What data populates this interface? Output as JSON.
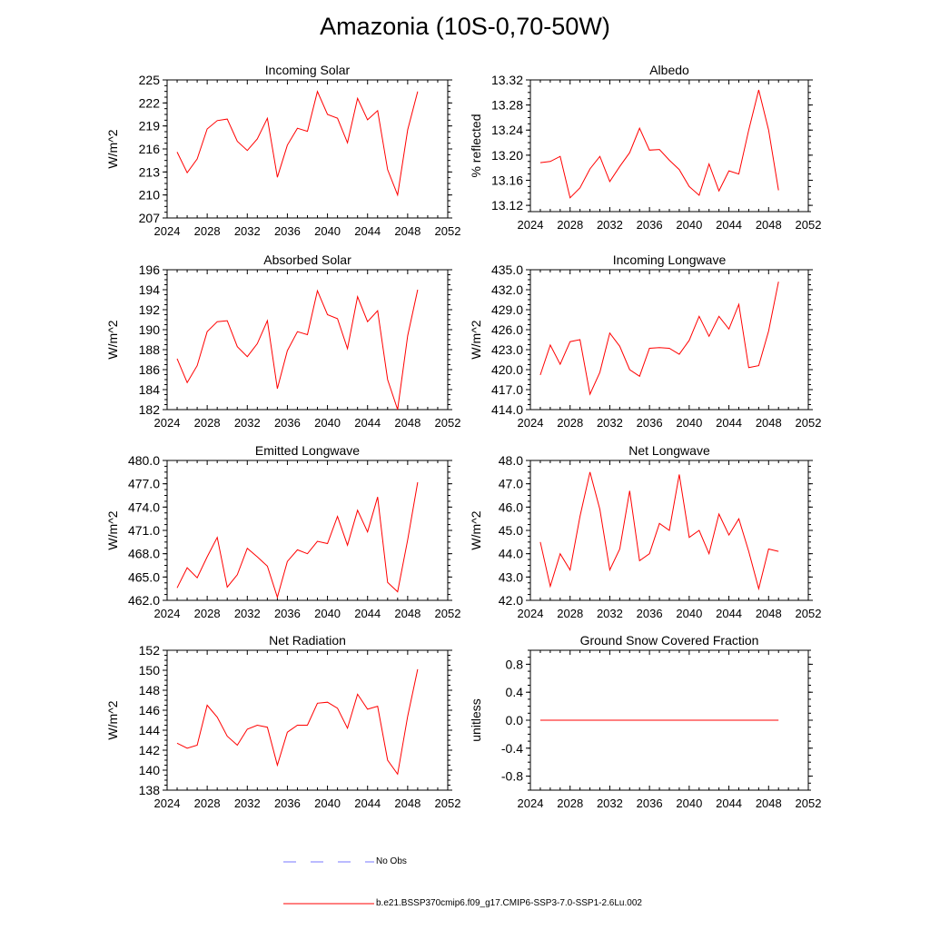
{
  "page": {
    "title": "Amazonia (10S-0,70-50W)"
  },
  "chart_data": [
    {
      "type": "line",
      "title": "Incoming Solar",
      "ylabel": "W/m^2",
      "xlim": [
        2024,
        2052
      ],
      "ylim": [
        207,
        225
      ],
      "xticks": [
        2024,
        2028,
        2032,
        2036,
        2040,
        2044,
        2048,
        2052
      ],
      "yticks": [
        207,
        210,
        213,
        216,
        219,
        222,
        225
      ],
      "ytick_labels": [
        "207",
        "210",
        "213",
        "216",
        "219",
        "222",
        "225"
      ],
      "x": [
        2025,
        2026,
        2027,
        2028,
        2029,
        2030,
        2031,
        2032,
        2033,
        2034,
        2035,
        2036,
        2037,
        2038,
        2039,
        2040,
        2041,
        2042,
        2043,
        2044,
        2045,
        2046,
        2047,
        2048,
        2049
      ],
      "series": [
        {
          "name": "b.e21.BSSP370cmip6.f09_g17.CMIP6-SSP3-7.0-SSP1-2.6Lu.002",
          "color": "#ff0000",
          "values": [
            215.6,
            212.9,
            214.7,
            218.6,
            219.7,
            219.9,
            217.0,
            215.8,
            217.3,
            220.0,
            212.3,
            216.5,
            218.7,
            218.3,
            223.5,
            220.5,
            220.0,
            216.8,
            222.6,
            219.8,
            221.0,
            213.3,
            210.0,
            218.5,
            223.5
          ]
        }
      ]
    },
    {
      "type": "line",
      "title": "Albedo",
      "ylabel": "% reflected",
      "xlim": [
        2024,
        2052
      ],
      "ylim": [
        13.11,
        13.32
      ],
      "xticks": [
        2024,
        2028,
        2032,
        2036,
        2040,
        2044,
        2048,
        2052
      ],
      "yticks": [
        13.12,
        13.16,
        13.2,
        13.24,
        13.28,
        13.32
      ],
      "ytick_labels": [
        "13.12",
        "13.16",
        "13.20",
        "13.24",
        "13.28",
        "13.32"
      ],
      "x": [
        2025,
        2026,
        2027,
        2028,
        2029,
        2030,
        2031,
        2032,
        2033,
        2034,
        2035,
        2036,
        2037,
        2038,
        2039,
        2040,
        2041,
        2042,
        2043,
        2044,
        2045,
        2046,
        2047,
        2048,
        2049
      ],
      "series": [
        {
          "name": "b.e21.BSSP370cmip6.f09_g17.CMIP6-SSP3-7.0-SSP1-2.6Lu.002",
          "color": "#ff0000",
          "values": [
            13.188,
            13.19,
            13.198,
            13.132,
            13.148,
            13.178,
            13.198,
            13.158,
            13.182,
            13.204,
            13.243,
            13.208,
            13.209,
            13.192,
            13.177,
            13.15,
            13.136,
            13.186,
            13.143,
            13.175,
            13.17,
            13.24,
            13.304,
            13.24,
            13.144
          ]
        }
      ]
    },
    {
      "type": "line",
      "title": "Absorbed Solar",
      "ylabel": "W/m^2",
      "xlim": [
        2024,
        2052
      ],
      "ylim": [
        182,
        196
      ],
      "xticks": [
        2024,
        2028,
        2032,
        2036,
        2040,
        2044,
        2048,
        2052
      ],
      "yticks": [
        182,
        184,
        186,
        188,
        190,
        192,
        194,
        196
      ],
      "ytick_labels": [
        "182",
        "184",
        "186",
        "188",
        "190",
        "192",
        "194",
        "196"
      ],
      "x": [
        2025,
        2026,
        2027,
        2028,
        2029,
        2030,
        2031,
        2032,
        2033,
        2034,
        2035,
        2036,
        2037,
        2038,
        2039,
        2040,
        2041,
        2042,
        2043,
        2044,
        2045,
        2046,
        2047,
        2048,
        2049
      ],
      "series": [
        {
          "name": "b.e21.BSSP370cmip6.f09_g17.CMIP6-SSP3-7.0-SSP1-2.6Lu.002",
          "color": "#ff0000",
          "values": [
            187.1,
            184.7,
            186.4,
            189.8,
            190.8,
            190.9,
            188.3,
            187.3,
            188.6,
            190.9,
            184.1,
            187.9,
            189.8,
            189.5,
            193.9,
            191.5,
            191.1,
            188.1,
            193.3,
            190.8,
            191.9,
            185.0,
            182.0,
            189.4,
            194.0
          ]
        }
      ]
    },
    {
      "type": "line",
      "title": "Incoming Longwave",
      "ylabel": "W/m^2",
      "xlim": [
        2024,
        2052
      ],
      "ylim": [
        414,
        435
      ],
      "xticks": [
        2024,
        2028,
        2032,
        2036,
        2040,
        2044,
        2048,
        2052
      ],
      "yticks": [
        414,
        417,
        420,
        423,
        426,
        429,
        432,
        435
      ],
      "ytick_labels": [
        "414.0",
        "417.0",
        "420.0",
        "423.0",
        "426.0",
        "429.0",
        "432.0",
        "435.0"
      ],
      "x": [
        2025,
        2026,
        2027,
        2028,
        2029,
        2030,
        2031,
        2032,
        2033,
        2034,
        2035,
        2036,
        2037,
        2038,
        2039,
        2040,
        2041,
        2042,
        2043,
        2044,
        2045,
        2046,
        2047,
        2048,
        2049
      ],
      "series": [
        {
          "name": "b.e21.BSSP370cmip6.f09_g17.CMIP6-SSP3-7.0-SSP1-2.6Lu.002",
          "color": "#ff0000",
          "values": [
            419.2,
            423.7,
            420.8,
            424.2,
            424.5,
            416.3,
            419.6,
            425.5,
            423.5,
            420.0,
            419.0,
            423.2,
            423.3,
            423.2,
            422.3,
            424.4,
            428.0,
            425.0,
            428.0,
            426.1,
            429.8,
            420.3,
            420.6,
            425.8,
            433.2
          ]
        }
      ]
    },
    {
      "type": "line",
      "title": "Emitted Longwave",
      "ylabel": "W/m^2",
      "xlim": [
        2024,
        2052
      ],
      "ylim": [
        462,
        480
      ],
      "xticks": [
        2024,
        2028,
        2032,
        2036,
        2040,
        2044,
        2048,
        2052
      ],
      "yticks": [
        462,
        465,
        468,
        471,
        474,
        477,
        480
      ],
      "ytick_labels": [
        "462.0",
        "465.0",
        "468.0",
        "471.0",
        "474.0",
        "477.0",
        "480.0"
      ],
      "x": [
        2025,
        2026,
        2027,
        2028,
        2029,
        2030,
        2031,
        2032,
        2033,
        2034,
        2035,
        2036,
        2037,
        2038,
        2039,
        2040,
        2041,
        2042,
        2043,
        2044,
        2045,
        2046,
        2047,
        2048,
        2049
      ],
      "series": [
        {
          "name": "b.e21.BSSP370cmip6.f09_g17.CMIP6-SSP3-7.0-SSP1-2.6Lu.002",
          "color": "#ff0000",
          "values": [
            463.6,
            466.2,
            464.9,
            467.6,
            470.1,
            463.7,
            465.3,
            468.7,
            467.6,
            466.4,
            462.4,
            467.0,
            468.5,
            468.0,
            469.6,
            469.3,
            472.8,
            469.1,
            473.6,
            470.8,
            475.3,
            464.3,
            463.1,
            469.8,
            477.2
          ]
        }
      ]
    },
    {
      "type": "line",
      "title": "Net Longwave",
      "ylabel": "W/m^2",
      "xlim": [
        2024,
        2052
      ],
      "ylim": [
        42,
        48
      ],
      "xticks": [
        2024,
        2028,
        2032,
        2036,
        2040,
        2044,
        2048,
        2052
      ],
      "yticks": [
        42,
        43,
        44,
        45,
        46,
        47,
        48
      ],
      "ytick_labels": [
        "42.0",
        "43.0",
        "44.0",
        "45.0",
        "46.0",
        "47.0",
        "48.0"
      ],
      "x": [
        2025,
        2026,
        2027,
        2028,
        2029,
        2030,
        2031,
        2032,
        2033,
        2034,
        2035,
        2036,
        2037,
        2038,
        2039,
        2040,
        2041,
        2042,
        2043,
        2044,
        2045,
        2046,
        2047,
        2048,
        2049
      ],
      "series": [
        {
          "name": "b.e21.BSSP370cmip6.f09_g17.CMIP6-SSP3-7.0-SSP1-2.6Lu.002",
          "color": "#ff0000",
          "values": [
            44.5,
            42.6,
            44.0,
            43.3,
            45.6,
            47.5,
            45.9,
            43.3,
            44.2,
            46.7,
            43.7,
            44.0,
            45.3,
            45.0,
            47.4,
            44.7,
            45.0,
            44.0,
            45.7,
            44.8,
            45.5,
            44.1,
            42.5,
            44.2,
            44.1
          ]
        }
      ]
    },
    {
      "type": "line",
      "title": "Net Radiation",
      "ylabel": "W/m^2",
      "xlim": [
        2024,
        2052
      ],
      "ylim": [
        138,
        152
      ],
      "xticks": [
        2024,
        2028,
        2032,
        2036,
        2040,
        2044,
        2048,
        2052
      ],
      "yticks": [
        138,
        140,
        142,
        144,
        146,
        148,
        150,
        152
      ],
      "ytick_labels": [
        "138",
        "140",
        "142",
        "144",
        "146",
        "148",
        "150",
        "152"
      ],
      "x": [
        2025,
        2026,
        2027,
        2028,
        2029,
        2030,
        2031,
        2032,
        2033,
        2034,
        2035,
        2036,
        2037,
        2038,
        2039,
        2040,
        2041,
        2042,
        2043,
        2044,
        2045,
        2046,
        2047,
        2048,
        2049
      ],
      "series": [
        {
          "name": "b.e21.BSSP370cmip6.f09_g17.CMIP6-SSP3-7.0-SSP1-2.6Lu.002",
          "color": "#ff0000",
          "values": [
            142.7,
            142.2,
            142.5,
            146.5,
            145.3,
            143.4,
            142.5,
            144.1,
            144.5,
            144.3,
            140.5,
            143.8,
            144.5,
            144.5,
            146.7,
            146.8,
            146.2,
            144.2,
            147.6,
            146.1,
            146.4,
            141.0,
            139.6,
            145.4,
            150.1
          ]
        }
      ]
    },
    {
      "type": "line",
      "title": "Ground Snow Covered Fraction",
      "ylabel": "unitless",
      "xlim": [
        2024,
        2052
      ],
      "ylim": [
        -1.0,
        1.0
      ],
      "xticks": [
        2024,
        2028,
        2032,
        2036,
        2040,
        2044,
        2048,
        2052
      ],
      "yticks": [
        -0.8,
        -0.4,
        0.0,
        0.4,
        0.8
      ],
      "ytick_labels": [
        "-0.8",
        "-0.4",
        "0.0",
        "0.4",
        "0.8"
      ],
      "x": [
        2025,
        2026,
        2027,
        2028,
        2029,
        2030,
        2031,
        2032,
        2033,
        2034,
        2035,
        2036,
        2037,
        2038,
        2039,
        2040,
        2041,
        2042,
        2043,
        2044,
        2045,
        2046,
        2047,
        2048,
        2049
      ],
      "series": [
        {
          "name": "b.e21.BSSP370cmip6.f09_g17.CMIP6-SSP3-7.0-SSP1-2.6Lu.002",
          "color": "#ff0000",
          "values": [
            0,
            0,
            0,
            0,
            0,
            0,
            0,
            0,
            0,
            0,
            0,
            0,
            0,
            0,
            0,
            0,
            0,
            0,
            0,
            0,
            0,
            0,
            0,
            0,
            0
          ]
        }
      ]
    }
  ],
  "legend": [
    {
      "label": "No Obs",
      "color": "#7777ff",
      "style": "dashed"
    },
    {
      "label": "b.e21.BSSP370cmip6.f09_g17.CMIP6-SSP3-7.0-SSP1-2.6Lu.002",
      "color": "#ff0000",
      "style": "solid"
    }
  ]
}
